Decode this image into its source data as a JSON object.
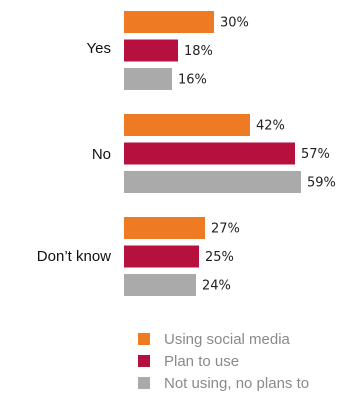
{
  "chart_data": {
    "type": "bar",
    "orientation": "horizontal",
    "categories": [
      "Yes",
      "No",
      "Don’t know"
    ],
    "series": [
      {
        "name": "Using social media",
        "values": [
          30,
          42,
          27
        ],
        "color": "#ee7a23"
      },
      {
        "name": "Plan to use",
        "values": [
          18,
          57,
          25
        ],
        "color": "#b5103e"
      },
      {
        "name": "Not using, no plans to",
        "values": [
          16,
          59,
          24
        ],
        "color": "#aaaaaa"
      }
    ],
    "value_suffix": "%",
    "legend_position": "bottom",
    "grid": false
  }
}
